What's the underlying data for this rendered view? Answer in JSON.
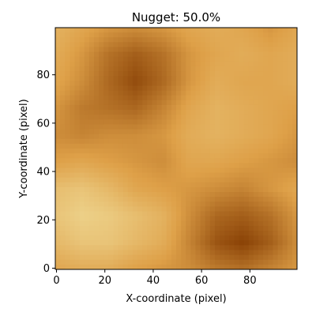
{
  "chart_data": {
    "type": "heatmap",
    "title": "Nugget: 50.0%",
    "xlabel": "X-coordinate (pixel)",
    "ylabel": "Y-coordinate (pixel)",
    "xlim": [
      -0.5,
      99.5
    ],
    "ylim": [
      -0.5,
      99.5
    ],
    "xticks": [
      0,
      20,
      40,
      60,
      80
    ],
    "yticks": [
      0,
      20,
      40,
      60,
      80
    ],
    "grid": false,
    "colormap_low": "#f0dc98",
    "colormap_high": "#8a4206",
    "field_nx": 10,
    "field_ny": 10,
    "field_values": [
      [
        0.35,
        0.45,
        0.55,
        0.6,
        0.55,
        0.45,
        0.4,
        0.45,
        0.55,
        0.45
      ],
      [
        0.4,
        0.55,
        0.75,
        0.85,
        0.75,
        0.55,
        0.45,
        0.4,
        0.45,
        0.4
      ],
      [
        0.45,
        0.6,
        0.8,
        0.95,
        0.8,
        0.55,
        0.4,
        0.45,
        0.45,
        0.4
      ],
      [
        0.55,
        0.7,
        0.75,
        0.8,
        0.65,
        0.45,
        0.35,
        0.4,
        0.45,
        0.5
      ],
      [
        0.6,
        0.65,
        0.6,
        0.6,
        0.55,
        0.4,
        0.35,
        0.4,
        0.45,
        0.55
      ],
      [
        0.5,
        0.45,
        0.5,
        0.55,
        0.6,
        0.45,
        0.45,
        0.5,
        0.55,
        0.6
      ],
      [
        0.25,
        0.2,
        0.3,
        0.45,
        0.5,
        0.55,
        0.6,
        0.65,
        0.55,
        0.45
      ],
      [
        0.2,
        0.1,
        0.15,
        0.25,
        0.35,
        0.6,
        0.8,
        0.85,
        0.75,
        0.55
      ],
      [
        0.3,
        0.2,
        0.2,
        0.3,
        0.4,
        0.65,
        0.9,
        1.0,
        0.85,
        0.6
      ],
      [
        0.45,
        0.4,
        0.4,
        0.5,
        0.55,
        0.6,
        0.7,
        0.75,
        0.65,
        0.55
      ]
    ]
  }
}
